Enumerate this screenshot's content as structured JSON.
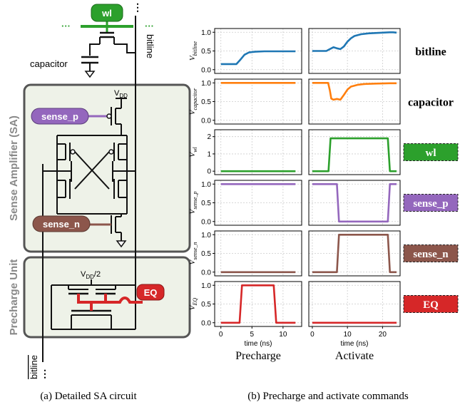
{
  "circuit": {
    "labels": {
      "wl": "wl",
      "capacitor": "capacitor",
      "bitline": "bitline",
      "bitline_bar": "bitline",
      "dots_top": "⋮",
      "dots_bottom": "⋮",
      "sa_title": "Sense Amplifier (SA)",
      "vdd": "V",
      "vdd_sub": "DD",
      "sense_p": "sense_p",
      "sense_n": "sense_n",
      "precharge_title": "Precharge Unit",
      "vdd2": "V",
      "vdd2_sub": "DD",
      "vdd2_suffix": "/2",
      "eq": "EQ"
    },
    "colors": {
      "wl": "#2ca02c",
      "sense_p": "#9467bd",
      "sense_n": "#8c564b",
      "eq": "#d62728",
      "panel_fill": "#eef2e8",
      "panel_border": "#555555"
    }
  },
  "plots": {
    "rows": [
      {
        "ylabel": "V",
        "ysub": "bitline",
        "right_label": "bitline",
        "right_boxed": false,
        "color": "#1f77b4",
        "ylim": [
          -0.1,
          1.1
        ],
        "yticks": [
          "0.0",
          "0.5",
          "1.0"
        ],
        "ytick_vals": [
          0,
          0.5,
          1
        ]
      },
      {
        "ylabel": "V",
        "ysub": "capacitor",
        "right_label": "capacitor",
        "right_boxed": false,
        "color": "#ff7f0e",
        "ylim": [
          -0.1,
          1.1
        ],
        "yticks": [
          "0.0",
          "0.5",
          "1.0"
        ],
        "ytick_vals": [
          0,
          0.5,
          1
        ]
      },
      {
        "ylabel": "V",
        "ysub": "wl",
        "right_label": "wl",
        "right_boxed": true,
        "color": "#2ca02c",
        "ylim": [
          -0.2,
          2.4
        ],
        "yticks": [
          "0",
          "1",
          "2"
        ],
        "ytick_vals": [
          0,
          1,
          2
        ]
      },
      {
        "ylabel": "V",
        "ysub": "sense_p",
        "right_label": "sense_p",
        "right_boxed": true,
        "color": "#9467bd",
        "ylim": [
          -0.1,
          1.1
        ],
        "yticks": [
          "0.0",
          "0.5",
          "1.0"
        ],
        "ytick_vals": [
          0,
          0.5,
          1
        ]
      },
      {
        "ylabel": "V",
        "ysub": "sense_n",
        "right_label": "sense_n",
        "right_boxed": true,
        "color": "#8c564b",
        "ylim": [
          -0.1,
          1.1
        ],
        "yticks": [
          "0.0",
          "0.5",
          "1.0"
        ],
        "ytick_vals": [
          0,
          0.5,
          1
        ]
      },
      {
        "ylabel": "V",
        "ysub": "EQ",
        "right_label": "EQ",
        "right_boxed": true,
        "color": "#d62728",
        "ylim": [
          -0.1,
          1.1
        ],
        "yticks": [
          "0.0",
          "0.5",
          "1.0"
        ],
        "ytick_vals": [
          0,
          0.5,
          1
        ]
      }
    ],
    "columns": [
      {
        "title": "Precharge",
        "xlabel": "time (ns)",
        "xlim": [
          -1,
          13
        ],
        "xticks": [
          0,
          5,
          10
        ]
      },
      {
        "title": "Activate",
        "xlabel": "time (ns)",
        "xlim": [
          -1,
          25
        ],
        "xticks": [
          0,
          10,
          20
        ]
      }
    ]
  },
  "chart_data": {
    "type": "line",
    "xlabel": "time (ns)",
    "panels": [
      {
        "column": "Precharge",
        "series": [
          {
            "name": "bitline",
            "x": [
              0,
              2.5,
              3.2,
              3.8,
              4.5,
              5.5,
              7,
              9,
              12
            ],
            "y": [
              0.15,
              0.15,
              0.28,
              0.4,
              0.46,
              0.48,
              0.49,
              0.49,
              0.49
            ]
          },
          {
            "name": "capacitor",
            "x": [
              0,
              12
            ],
            "y": [
              1.0,
              1.0
            ]
          },
          {
            "name": "wl",
            "x": [
              0,
              12
            ],
            "y": [
              0,
              0
            ]
          },
          {
            "name": "sense_p",
            "x": [
              0,
              12
            ],
            "y": [
              1.0,
              1.0
            ]
          },
          {
            "name": "sense_n",
            "x": [
              0,
              12
            ],
            "y": [
              0,
              0
            ]
          },
          {
            "name": "EQ",
            "x": [
              0,
              3,
              3.4,
              8.5,
              8.9,
              12
            ],
            "y": [
              0,
              0,
              1,
              1,
              0,
              0
            ]
          }
        ]
      },
      {
        "column": "Activate",
        "series": [
          {
            "name": "bitline",
            "x": [
              0,
              4,
              5,
              6,
              7,
              8,
              9,
              10,
              11,
              12,
              14,
              16,
              18,
              20,
              22,
              23,
              24
            ],
            "y": [
              0.5,
              0.5,
              0.55,
              0.6,
              0.57,
              0.55,
              0.62,
              0.75,
              0.84,
              0.9,
              0.95,
              0.97,
              0.98,
              0.99,
              1.0,
              1.0,
              0.99
            ]
          },
          {
            "name": "capacitor",
            "x": [
              0,
              4.5,
              5,
              5.4,
              6,
              7,
              8,
              9,
              10,
              11,
              13,
              15,
              18,
              22,
              24
            ],
            "y": [
              1.0,
              1.0,
              0.8,
              0.58,
              0.55,
              0.57,
              0.55,
              0.68,
              0.82,
              0.9,
              0.95,
              0.97,
              0.98,
              0.99,
              0.99
            ]
          },
          {
            "name": "wl",
            "x": [
              0,
              4.6,
              5.2,
              21.5,
              22.1,
              24
            ],
            "y": [
              0,
              0,
              1.9,
              1.9,
              0,
              0
            ]
          },
          {
            "name": "sense_p",
            "x": [
              0,
              7,
              7.6,
              21.5,
              22.1,
              24
            ],
            "y": [
              1,
              1,
              0,
              0,
              1,
              1
            ]
          },
          {
            "name": "sense_n",
            "x": [
              0,
              7,
              7.6,
              21.5,
              22.1,
              24
            ],
            "y": [
              0,
              0,
              1,
              1,
              0,
              0
            ]
          },
          {
            "name": "EQ",
            "x": [
              0,
              24
            ],
            "y": [
              0,
              0
            ]
          }
        ]
      }
    ]
  },
  "captions": {
    "a": "(a) Detailed SA circuit",
    "b": "(b) Precharge and activate commands"
  }
}
